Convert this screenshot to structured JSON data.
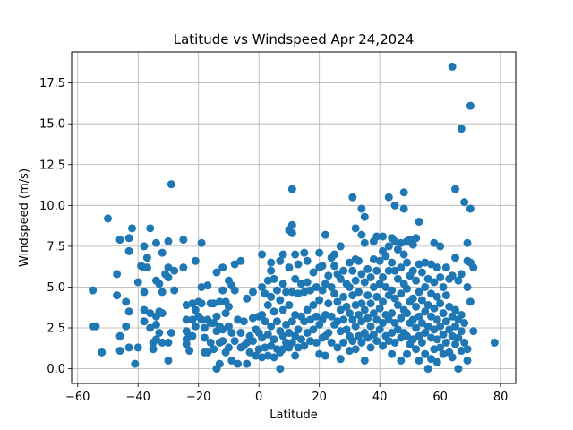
{
  "chart_data": {
    "type": "scatter",
    "title": "Latitude vs Windspeed Apr 24,2024",
    "xlabel": "Latitude",
    "ylabel": "Windspeed (m/s)",
    "xlim": [
      -62,
      85
    ],
    "ylim": [
      -0.9,
      19.4
    ],
    "xticks": [
      -60,
      -40,
      -20,
      0,
      20,
      40,
      60,
      80
    ],
    "xtick_labels": [
      "−60",
      "−40",
      "−20",
      "0",
      "20",
      "40",
      "60",
      "80"
    ],
    "yticks": [
      0,
      2.5,
      5,
      7.5,
      10,
      12.5,
      15,
      17.5
    ],
    "ytick_labels": [
      "0.0",
      "2.5",
      "5.0",
      "7.5",
      "10.0",
      "12.5",
      "15.0",
      "17.5"
    ],
    "grid": true,
    "marker_color": "#1f77b4",
    "points": [
      [
        -55,
        4.8
      ],
      [
        -55,
        2.6
      ],
      [
        -54,
        2.6
      ],
      [
        -52,
        1.0
      ],
      [
        -50,
        9.2
      ],
      [
        -47,
        5.8
      ],
      [
        -47,
        4.5
      ],
      [
        -46,
        7.9
      ],
      [
        -46,
        2.0
      ],
      [
        -46,
        1.1
      ],
      [
        -44,
        2.6
      ],
      [
        -44,
        4.1
      ],
      [
        -43,
        8.0
      ],
      [
        -43,
        7.2
      ],
      [
        -43,
        3.5
      ],
      [
        -43,
        1.3
      ],
      [
        -42,
        8.6
      ],
      [
        -41,
        0.3
      ],
      [
        -40,
        1.3
      ],
      [
        -40,
        5.3
      ],
      [
        -39,
        6.3
      ],
      [
        -38,
        7.5
      ],
      [
        -38,
        6.2
      ],
      [
        -38,
        4.7
      ],
      [
        -38,
        3.6
      ],
      [
        -38,
        2.9
      ],
      [
        -37,
        6.8
      ],
      [
        -37,
        6.2
      ],
      [
        -36,
        2.5
      ],
      [
        -36,
        3.4
      ],
      [
        -36,
        8.6
      ],
      [
        -35,
        1.2
      ],
      [
        -35,
        1.6
      ],
      [
        -34,
        7.7
      ],
      [
        -34,
        5.4
      ],
      [
        -34,
        3.2
      ],
      [
        -34,
        2.7
      ],
      [
        -34,
        1.8
      ],
      [
        -33,
        5.2
      ],
      [
        -33,
        3.5
      ],
      [
        -33,
        2.2
      ],
      [
        -32,
        7.1
      ],
      [
        -32,
        4.7
      ],
      [
        -32,
        3.4
      ],
      [
        -32,
        1.6
      ],
      [
        -31,
        5.8
      ],
      [
        -30,
        7.8
      ],
      [
        -30,
        6.2
      ],
      [
        -30,
        5.6
      ],
      [
        -30,
        0.5
      ],
      [
        -30,
        1.6
      ],
      [
        -29,
        11.3
      ],
      [
        -29,
        2.2
      ],
      [
        -28,
        6.0
      ],
      [
        -28,
        4.8
      ],
      [
        -25,
        7.9
      ],
      [
        -25,
        6.2
      ],
      [
        -24,
        3.9
      ],
      [
        -24,
        3.0
      ],
      [
        -24,
        2.3
      ],
      [
        -24,
        1.8
      ],
      [
        -24,
        1.5
      ],
      [
        -23,
        2.0
      ],
      [
        -23,
        1.1
      ],
      [
        -22,
        4.0
      ],
      [
        -22,
        3.0
      ],
      [
        -22,
        2.0
      ],
      [
        -21,
        6.6
      ],
      [
        -21,
        3.6
      ],
      [
        -21,
        2.6
      ],
      [
        -20,
        4.1
      ],
      [
        -20,
        3.2
      ],
      [
        -19,
        7.7
      ],
      [
        -19,
        5.0
      ],
      [
        -19,
        4.0
      ],
      [
        -19,
        3.0
      ],
      [
        -18,
        2.5
      ],
      [
        -18,
        1.9
      ],
      [
        -18,
        1.0
      ],
      [
        -17,
        5.1
      ],
      [
        -17,
        3.0
      ],
      [
        -17,
        1.0
      ],
      [
        -16,
        4.0
      ],
      [
        -16,
        2.8
      ],
      [
        -16,
        1.6
      ],
      [
        -15,
        4.0
      ],
      [
        -15,
        2.8
      ],
      [
        -15,
        1.2
      ],
      [
        -14,
        5.9
      ],
      [
        -14,
        3.2
      ],
      [
        -14,
        2.3
      ],
      [
        -14,
        0.0
      ],
      [
        -13,
        4.1
      ],
      [
        -13,
        2.6
      ],
      [
        -13,
        1.6
      ],
      [
        -13,
        0.3
      ],
      [
        -12,
        6.2
      ],
      [
        -12,
        4.8
      ],
      [
        -12,
        2.4
      ],
      [
        -12,
        1.7
      ],
      [
        -11,
        4.1
      ],
      [
        -11,
        3.4
      ],
      [
        -11,
        1.0
      ],
      [
        -10,
        5.4
      ],
      [
        -10,
        3.8
      ],
      [
        -10,
        2.6
      ],
      [
        -10,
        1.3
      ],
      [
        -9,
        5.1
      ],
      [
        -9,
        2.2
      ],
      [
        -9,
        0.5
      ],
      [
        -8,
        6.4
      ],
      [
        -8,
        4.8
      ],
      [
        -8,
        1.7
      ],
      [
        -7,
        3.0
      ],
      [
        -7,
        0.3
      ],
      [
        -6,
        6.6
      ],
      [
        -6,
        2.2
      ],
      [
        -6,
        1.3
      ],
      [
        -5,
        2.9
      ],
      [
        -5,
        1.4
      ],
      [
        -4,
        4.3
      ],
      [
        -4,
        1.6
      ],
      [
        -4,
        0.3
      ],
      [
        -3,
        2.0
      ],
      [
        -3,
        1.0
      ],
      [
        -2,
        4.7
      ],
      [
        -2,
        3.1
      ],
      [
        -2,
        1.7
      ],
      [
        -1,
        2.4
      ],
      [
        -1,
        0.8
      ],
      [
        0,
        3.2
      ],
      [
        0,
        2.2
      ],
      [
        0,
        1.2
      ],
      [
        1,
        7.0
      ],
      [
        1,
        5.0
      ],
      [
        1,
        3.3
      ],
      [
        1,
        1.9
      ],
      [
        1,
        0.7
      ],
      [
        2,
        4.6
      ],
      [
        2,
        2.9
      ],
      [
        2,
        1.3
      ],
      [
        3,
        5.4
      ],
      [
        3,
        3.9
      ],
      [
        3,
        2.1
      ],
      [
        3,
        0.8
      ],
      [
        4,
        6.5
      ],
      [
        4,
        6.0
      ],
      [
        4,
        4.4
      ],
      [
        4,
        2.6
      ],
      [
        4,
        1.4
      ],
      [
        5,
        5.5
      ],
      [
        5,
        3.5
      ],
      [
        5,
        1.8
      ],
      [
        5,
        0.7
      ],
      [
        6,
        4.8
      ],
      [
        6,
        2.9
      ],
      [
        6,
        1.2
      ],
      [
        7,
        6.6
      ],
      [
        7,
        4.2
      ],
      [
        7,
        2.3
      ],
      [
        7,
        1.0
      ],
      [
        7,
        0.0
      ],
      [
        8,
        7.0
      ],
      [
        8,
        5.2
      ],
      [
        8,
        3.6
      ],
      [
        8,
        2.0
      ],
      [
        8,
        1.2
      ],
      [
        9,
        4.7
      ],
      [
        9,
        2.7
      ],
      [
        9,
        1.6
      ],
      [
        10,
        8.5
      ],
      [
        10,
        6.2
      ],
      [
        10,
        3.9
      ],
      [
        10,
        2.2
      ],
      [
        10,
        1.3
      ],
      [
        11,
        11.0
      ],
      [
        11,
        8.8
      ],
      [
        11,
        8.3
      ],
      [
        11,
        4.7
      ],
      [
        11,
        2.9
      ],
      [
        11,
        1.6
      ],
      [
        12,
        7.0
      ],
      [
        12,
        5.5
      ],
      [
        12,
        3.3
      ],
      [
        12,
        2.0
      ],
      [
        12,
        0.8
      ],
      [
        13,
        6.4
      ],
      [
        13,
        4.6
      ],
      [
        13,
        2.4
      ],
      [
        13,
        1.3
      ],
      [
        14,
        5.2
      ],
      [
        14,
        3.2
      ],
      [
        14,
        1.8
      ],
      [
        15,
        7.1
      ],
      [
        15,
        4.7
      ],
      [
        15,
        2.9
      ],
      [
        15,
        1.4
      ],
      [
        16,
        6.6
      ],
      [
        16,
        5.3
      ],
      [
        16,
        3.6
      ],
      [
        16,
        2.2
      ],
      [
        17,
        4.8
      ],
      [
        17,
        3.0
      ],
      [
        17,
        1.7
      ],
      [
        18,
        5.9
      ],
      [
        18,
        3.9
      ],
      [
        18,
        2.4
      ],
      [
        19,
        5.0
      ],
      [
        19,
        3.2
      ],
      [
        19,
        1.6
      ],
      [
        20,
        7.1
      ],
      [
        20,
        6.2
      ],
      [
        20,
        4.2
      ],
      [
        20,
        2.7
      ],
      [
        20,
        0.9
      ],
      [
        21,
        6.3
      ],
      [
        21,
        4.8
      ],
      [
        21,
        3.0
      ],
      [
        21,
        1.9
      ],
      [
        22,
        8.2
      ],
      [
        22,
        5.2
      ],
      [
        22,
        3.3
      ],
      [
        22,
        2.0
      ],
      [
        22,
        0.8
      ],
      [
        23,
        5.7
      ],
      [
        23,
        4.0
      ],
      [
        23,
        2.2
      ],
      [
        24,
        6.8
      ],
      [
        24,
        5.0
      ],
      [
        24,
        3.2
      ],
      [
        24,
        1.6
      ],
      [
        25,
        7.0
      ],
      [
        25,
        6.3
      ],
      [
        25,
        4.6
      ],
      [
        25,
        2.7
      ],
      [
        26,
        5.8
      ],
      [
        26,
        4.1
      ],
      [
        26,
        2.9
      ],
      [
        26,
        1.3
      ],
      [
        27,
        7.5
      ],
      [
        27,
        5.5
      ],
      [
        27,
        3.6
      ],
      [
        27,
        2.3
      ],
      [
        27,
        0.6
      ],
      [
        28,
        6.0
      ],
      [
        28,
        4.4
      ],
      [
        28,
        3.0
      ],
      [
        28,
        1.6
      ],
      [
        29,
        5.2
      ],
      [
        29,
        3.8
      ],
      [
        29,
        2.4
      ],
      [
        30,
        6.5
      ],
      [
        30,
        5.0
      ],
      [
        30,
        3.4
      ],
      [
        30,
        2.0
      ],
      [
        30,
        1.1
      ],
      [
        31,
        10.5
      ],
      [
        31,
        6.0
      ],
      [
        31,
        4.5
      ],
      [
        31,
        3.0
      ],
      [
        31,
        1.7
      ],
      [
        32,
        8.6
      ],
      [
        32,
        6.7
      ],
      [
        32,
        5.4
      ],
      [
        32,
        3.9
      ],
      [
        32,
        2.6
      ],
      [
        32,
        1.2
      ],
      [
        33,
        6.6
      ],
      [
        33,
        4.7
      ],
      [
        33,
        3.3
      ],
      [
        33,
        2.0
      ],
      [
        34,
        9.8
      ],
      [
        34,
        8.2
      ],
      [
        34,
        5.8
      ],
      [
        34,
        4.0
      ],
      [
        34,
        2.9
      ],
      [
        34,
        1.6
      ],
      [
        35,
        9.3
      ],
      [
        35,
        7.7
      ],
      [
        35,
        5.3
      ],
      [
        35,
        3.6
      ],
      [
        35,
        2.2
      ],
      [
        35,
        0.5
      ],
      [
        36,
        6.1
      ],
      [
        36,
        4.5
      ],
      [
        36,
        3.1
      ],
      [
        36,
        1.9
      ],
      [
        37,
        5.6
      ],
      [
        37,
        4.0
      ],
      [
        37,
        2.6
      ],
      [
        37,
        1.3
      ],
      [
        38,
        7.8
      ],
      [
        38,
        6.7
      ],
      [
        38,
        5.0
      ],
      [
        38,
        3.4
      ],
      [
        38,
        2.1
      ],
      [
        39,
        8.1
      ],
      [
        39,
        6.0
      ],
      [
        39,
        4.4
      ],
      [
        39,
        3.0
      ],
      [
        39,
        1.7
      ],
      [
        40,
        6.6
      ],
      [
        40,
        5.2
      ],
      [
        40,
        3.7
      ],
      [
        40,
        2.4
      ],
      [
        41,
        8.1
      ],
      [
        41,
        7.2
      ],
      [
        41,
        5.6
      ],
      [
        41,
        4.1
      ],
      [
        41,
        2.8
      ],
      [
        41,
        1.4
      ],
      [
        42,
        6.9
      ],
      [
        42,
        5.0
      ],
      [
        42,
        3.3
      ],
      [
        42,
        2.0
      ],
      [
        43,
        10.5
      ],
      [
        43,
        7.5
      ],
      [
        43,
        6.0
      ],
      [
        43,
        4.5
      ],
      [
        43,
        3.0
      ],
      [
        43,
        1.7
      ],
      [
        44,
        8.0
      ],
      [
        44,
        6.5
      ],
      [
        44,
        4.8
      ],
      [
        44,
        3.4
      ],
      [
        44,
        2.2
      ],
      [
        44,
        0.9
      ],
      [
        45,
        10.0
      ],
      [
        45,
        7.8
      ],
      [
        45,
        6.0
      ],
      [
        45,
        4.3
      ],
      [
        45,
        2.8
      ],
      [
        45,
        1.6
      ],
      [
        46,
        7.3
      ],
      [
        46,
        5.5
      ],
      [
        46,
        3.9
      ],
      [
        46,
        2.4
      ],
      [
        47,
        7.7
      ],
      [
        47,
        6.2
      ],
      [
        47,
        4.6
      ],
      [
        47,
        3.1
      ],
      [
        47,
        1.9
      ],
      [
        47,
        0.5
      ],
      [
        48,
        10.8
      ],
      [
        48,
        9.8
      ],
      [
        48,
        7.0
      ],
      [
        48,
        5.2
      ],
      [
        48,
        3.6
      ],
      [
        48,
        2.2
      ],
      [
        49,
        7.8
      ],
      [
        49,
        6.5
      ],
      [
        49,
        4.9
      ],
      [
        49,
        3.4
      ],
      [
        49,
        2.0
      ],
      [
        49,
        0.9
      ],
      [
        50,
        7.9
      ],
      [
        50,
        5.7
      ],
      [
        50,
        4.1
      ],
      [
        50,
        2.8
      ],
      [
        50,
        1.5
      ],
      [
        51,
        7.6
      ],
      [
        51,
        6.0
      ],
      [
        51,
        4.3
      ],
      [
        51,
        3.0
      ],
      [
        51,
        1.8
      ],
      [
        52,
        8.0
      ],
      [
        52,
        5.4
      ],
      [
        52,
        3.8
      ],
      [
        52,
        2.5
      ],
      [
        52,
        1.2
      ],
      [
        53,
        9.0
      ],
      [
        53,
        6.4
      ],
      [
        53,
        4.7
      ],
      [
        53,
        3.2
      ],
      [
        53,
        2.0
      ],
      [
        53,
        0.5
      ],
      [
        54,
        5.9
      ],
      [
        54,
        4.2
      ],
      [
        54,
        2.8
      ],
      [
        54,
        1.6
      ],
      [
        55,
        6.5
      ],
      [
        55,
        5.0
      ],
      [
        55,
        3.5
      ],
      [
        55,
        2.2
      ],
      [
        55,
        0.9
      ],
      [
        56,
        5.5
      ],
      [
        56,
        3.9
      ],
      [
        56,
        2.6
      ],
      [
        56,
        0.0
      ],
      [
        57,
        6.4
      ],
      [
        57,
        4.6
      ],
      [
        57,
        3.2
      ],
      [
        57,
        1.9
      ],
      [
        57,
        0.6
      ],
      [
        58,
        7.7
      ],
      [
        58,
        5.3
      ],
      [
        58,
        3.7
      ],
      [
        58,
        2.4
      ],
      [
        58,
        1.2
      ],
      [
        59,
        6.2
      ],
      [
        59,
        4.4
      ],
      [
        59,
        3.0
      ],
      [
        59,
        1.8
      ],
      [
        59,
        0.4
      ],
      [
        60,
        7.5
      ],
      [
        60,
        5.6
      ],
      [
        60,
        4.0
      ],
      [
        60,
        2.6
      ],
      [
        60,
        1.3
      ],
      [
        61,
        5.0
      ],
      [
        61,
        3.4
      ],
      [
        61,
        2.1
      ],
      [
        61,
        0.9
      ],
      [
        62,
        6.2
      ],
      [
        62,
        4.5
      ],
      [
        62,
        2.9
      ],
      [
        62,
        1.6
      ],
      [
        63,
        5.5
      ],
      [
        63,
        3.8
      ],
      [
        63,
        2.4
      ],
      [
        63,
        1.0
      ],
      [
        64,
        18.5
      ],
      [
        64,
        5.7
      ],
      [
        64,
        3.2
      ],
      [
        64,
        2.0
      ],
      [
        64,
        0.7
      ],
      [
        65,
        11.0
      ],
      [
        65,
        6.8
      ],
      [
        65,
        3.6
      ],
      [
        65,
        2.6
      ],
      [
        65,
        1.5
      ],
      [
        66,
        5.4
      ],
      [
        66,
        3.0
      ],
      [
        66,
        1.9
      ],
      [
        66,
        0.0
      ],
      [
        67,
        14.7
      ],
      [
        67,
        5.8
      ],
      [
        67,
        3.3
      ],
      [
        67,
        2.3
      ],
      [
        67,
        1.1
      ],
      [
        68,
        10.2
      ],
      [
        68,
        2.8
      ],
      [
        68,
        1.6
      ],
      [
        69,
        7.7
      ],
      [
        69,
        6.6
      ],
      [
        69,
        5.0
      ],
      [
        69,
        1.2
      ],
      [
        69,
        0.5
      ],
      [
        70,
        16.1
      ],
      [
        70,
        9.8
      ],
      [
        70,
        6.5
      ],
      [
        70,
        4.1
      ],
      [
        71,
        6.2
      ],
      [
        71,
        2.3
      ],
      [
        78,
        1.6
      ]
    ]
  }
}
